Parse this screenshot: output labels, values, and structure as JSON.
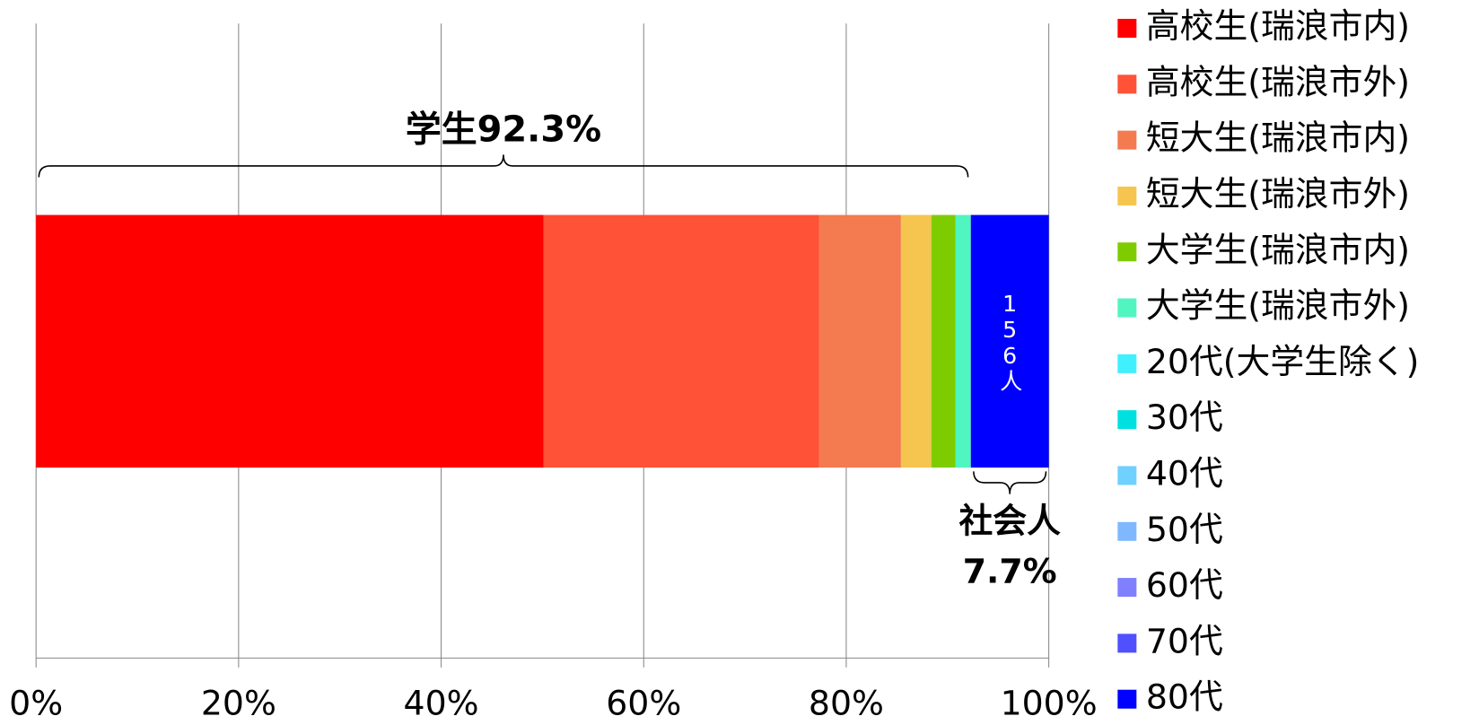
{
  "chart_data": {
    "type": "bar",
    "orientation": "horizontal",
    "stacked": true,
    "categories": [
      null
    ],
    "series": [
      {
        "name": "高校生(瑞浪市内)",
        "color": "#ff0000",
        "values": [
          50.1
        ]
      },
      {
        "name": "高校生(瑞浪市外)",
        "color": "#ff5237",
        "values": [
          27.2
        ]
      },
      {
        "name": "短大生(瑞浪市内)",
        "color": "#f47a50",
        "values": [
          8.1
        ]
      },
      {
        "name": "短大生(瑞浪市外)",
        "color": "#f5c550",
        "values": [
          3.0
        ]
      },
      {
        "name": "大学生(瑞浪市内)",
        "color": "#7ecc00",
        "values": [
          2.4
        ]
      },
      {
        "name": "大学生(瑞浪市外)",
        "color": "#50f5c0",
        "values": [
          1.5
        ]
      },
      {
        "name": "20代(大学生除く)",
        "color": "#40f0ff",
        "values": [
          0
        ]
      },
      {
        "name": "30代",
        "color": "#00e0e0",
        "values": [
          0
        ]
      },
      {
        "name": "40代",
        "color": "#70d0ff",
        "values": [
          0
        ]
      },
      {
        "name": "50代",
        "color": "#80b8ff",
        "values": [
          0
        ]
      },
      {
        "name": "60代",
        "color": "#8080ff",
        "values": [
          0
        ]
      },
      {
        "name": "70代",
        "color": "#5050ff",
        "values": [
          0
        ]
      },
      {
        "name": "80代",
        "color": "#0000ff",
        "values": [
          7.7
        ]
      }
    ],
    "xlim": [
      0,
      100
    ],
    "xticks": [
      {
        "value": 0,
        "label": "0%"
      },
      {
        "value": 20,
        "label": "20%"
      },
      {
        "value": 40,
        "label": "40%"
      },
      {
        "value": 60,
        "label": "60%"
      },
      {
        "value": 80,
        "label": "80%"
      },
      {
        "value": 100,
        "label": "100%"
      }
    ],
    "grid": true,
    "legend": "right",
    "annotations": {
      "students": "学生92.3%",
      "workers": [
        "社会人",
        "7.7%"
      ],
      "segment": "156人"
    }
  }
}
